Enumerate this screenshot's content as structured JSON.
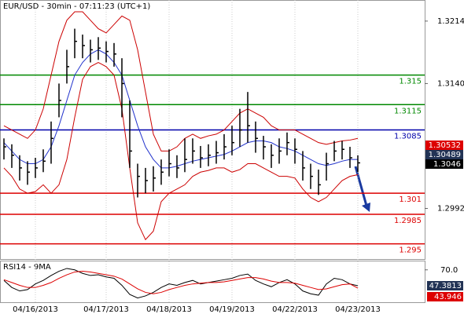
{
  "chart_data": {
    "type": "ohlc",
    "title": "EUR/USD - 30min - 07:11:23 (UTC+1)",
    "categories": [
      null,
      null,
      null,
      null,
      "04/16/2013",
      null,
      null,
      null,
      null,
      null,
      null,
      null,
      null,
      "04/17/2013",
      null,
      null,
      null,
      null,
      null,
      null,
      null,
      "04/18/2013",
      null,
      null,
      null,
      null,
      null,
      null,
      null,
      "04/19/2013",
      null,
      null,
      null,
      null,
      null,
      null,
      null,
      "04/22/2013",
      null,
      null,
      null,
      null,
      null,
      null,
      null,
      "04/23/2013"
    ],
    "bars": {
      "color": "#000000",
      "high": [
        1.3075,
        1.3068,
        1.3055,
        1.3048,
        1.3052,
        1.3062,
        1.3095,
        1.314,
        1.318,
        1.3205,
        1.3198,
        1.3192,
        1.3195,
        1.319,
        1.3188,
        1.317,
        1.312,
        1.3045,
        1.304,
        1.3042,
        1.305,
        1.3062,
        1.3055,
        1.3075,
        1.3075,
        1.3066,
        1.3068,
        1.3072,
        1.308,
        1.309,
        1.311,
        1.313,
        1.3095,
        1.3078,
        1.3068,
        1.3075,
        1.3082,
        1.3075,
        1.306,
        1.3045,
        1.3038,
        1.3058,
        1.3072,
        1.3072,
        1.3065,
        1.3055
      ],
      "low": [
        1.305,
        1.304,
        1.3025,
        1.302,
        1.3028,
        1.3035,
        1.3045,
        1.31,
        1.314,
        1.317,
        1.317,
        1.3165,
        1.3168,
        1.3165,
        1.316,
        1.31,
        1.304,
        1.3005,
        1.301,
        1.3012,
        1.302,
        1.303,
        1.3028,
        1.3035,
        1.3045,
        1.304,
        1.3042,
        1.3045,
        1.305,
        1.3055,
        1.3065,
        1.307,
        1.3058,
        1.305,
        1.304,
        1.3045,
        1.3055,
        1.3045,
        1.3025,
        1.3015,
        1.3008,
        1.3025,
        1.3048,
        1.305,
        1.304,
        1.3035
      ],
      "close": [
        1.3065,
        1.3055,
        1.304,
        1.3035,
        1.304,
        1.3048,
        1.3075,
        1.312,
        1.316,
        1.319,
        1.3185,
        1.318,
        1.3182,
        1.3178,
        1.3175,
        1.314,
        1.306,
        1.303,
        1.3025,
        1.3028,
        1.3035,
        1.3045,
        1.304,
        1.305,
        1.306,
        1.3052,
        1.3055,
        1.3058,
        1.3065,
        1.307,
        1.3085,
        1.309,
        1.3075,
        1.3065,
        1.3055,
        1.306,
        1.307,
        1.3062,
        1.304,
        1.303,
        1.302,
        1.3045,
        1.306,
        1.3062,
        1.3052,
        1.3046
      ]
    },
    "lines": [
      {
        "color": "#cc0000",
        "values": [
          1.309,
          1.3085,
          1.308,
          1.3075,
          1.3085,
          1.311,
          1.315,
          1.319,
          1.3215,
          1.3225,
          1.3225,
          1.3215,
          1.3205,
          1.32,
          1.321,
          1.322,
          1.3215,
          1.318,
          1.313,
          1.308,
          1.306,
          1.306,
          1.3065,
          1.3075,
          1.308,
          1.3075,
          1.3078,
          1.308,
          1.3085,
          1.3095,
          1.3105,
          1.311,
          1.3105,
          1.31,
          1.309,
          1.3085,
          1.3085,
          1.3085,
          1.308,
          1.3075,
          1.307,
          1.3068,
          1.307,
          1.3072,
          1.3073,
          1.3075
        ]
      },
      {
        "color": "#cc0000",
        "values": [
          1.304,
          1.303,
          1.3015,
          1.301,
          1.3012,
          1.302,
          1.301,
          1.302,
          1.305,
          1.31,
          1.3145,
          1.316,
          1.3165,
          1.316,
          1.315,
          1.311,
          1.304,
          1.2975,
          1.2955,
          1.2965,
          1.3,
          1.301,
          1.3015,
          1.302,
          1.303,
          1.3035,
          1.3037,
          1.304,
          1.304,
          1.3035,
          1.3038,
          1.3045,
          1.3045,
          1.304,
          1.3035,
          1.303,
          1.303,
          1.3028,
          1.3015,
          1.3005,
          1.3,
          1.3005,
          1.3015,
          1.3025,
          1.303,
          1.3032
        ]
      },
      {
        "color": "#2233cc",
        "values": [
          1.307,
          1.306,
          1.305,
          1.3045,
          1.3045,
          1.305,
          1.3065,
          1.309,
          1.312,
          1.315,
          1.3165,
          1.3175,
          1.318,
          1.3175,
          1.3165,
          1.315,
          1.312,
          1.309,
          1.3065,
          1.305,
          1.304,
          1.304,
          1.3042,
          1.3045,
          1.3048,
          1.305,
          1.3052,
          1.3054,
          1.3056,
          1.306,
          1.3065,
          1.307,
          1.3072,
          1.3072,
          1.307,
          1.3065,
          1.3063,
          1.306,
          1.3055,
          1.305,
          1.3045,
          1.3043,
          1.3045,
          1.3048,
          1.305,
          1.305
        ]
      }
    ],
    "levels": [
      {
        "value": 1.315,
        "color": "#008800"
      },
      {
        "value": 1.3115,
        "color": "#008800"
      },
      {
        "value": 1.3085,
        "color": "#0000aa"
      },
      {
        "value": 1.301,
        "color": "#dd0000"
      },
      {
        "value": 1.2985,
        "color": "#dd0000"
      },
      {
        "value": 1.295,
        "color": "#dd0000"
      }
    ],
    "price_tags": [
      {
        "value": 1.30532,
        "color": "#dd0000"
      },
      {
        "value": 1.30489,
        "color": "#223355"
      },
      {
        "value": 1.3046,
        "color": "#000000"
      }
    ],
    "ylim": [
      1.2932,
      1.3239
    ],
    "yticks": [
      1.2992,
      {
        "value": 1.314,
        "label": "1.3140"
      },
      1.3214
    ],
    "rsi": {
      "title": "RSI14 - 9MA",
      "ylim": [
        24,
        82
      ],
      "yticks": [
        {
          "value": 70,
          "label": "70.0"
        }
      ],
      "series": [
        {
          "color": "#000000",
          "tag_color": "#223355",
          "values": [
            55,
            45,
            40,
            42,
            50,
            55,
            62,
            68,
            72,
            70,
            65,
            62,
            63,
            60,
            58,
            48,
            35,
            30,
            33,
            38,
            45,
            50,
            48,
            52,
            55,
            50,
            52,
            54,
            56,
            58,
            62,
            64,
            55,
            50,
            46,
            52,
            56,
            50,
            40,
            36,
            34,
            50,
            58,
            56,
            50,
            47.3813
          ]
        },
        {
          "color": "#dd0000",
          "tag_color": "#dd0000",
          "values": [
            56,
            52,
            48,
            45,
            45,
            48,
            52,
            58,
            63,
            67,
            68,
            67,
            65,
            63,
            61,
            57,
            50,
            43,
            38,
            36,
            38,
            42,
            45,
            48,
            50,
            51,
            52,
            52,
            53,
            55,
            57,
            59,
            59,
            57,
            54,
            52,
            52,
            51,
            48,
            45,
            42,
            43,
            46,
            49,
            50,
            43.946
          ]
        }
      ]
    }
  }
}
